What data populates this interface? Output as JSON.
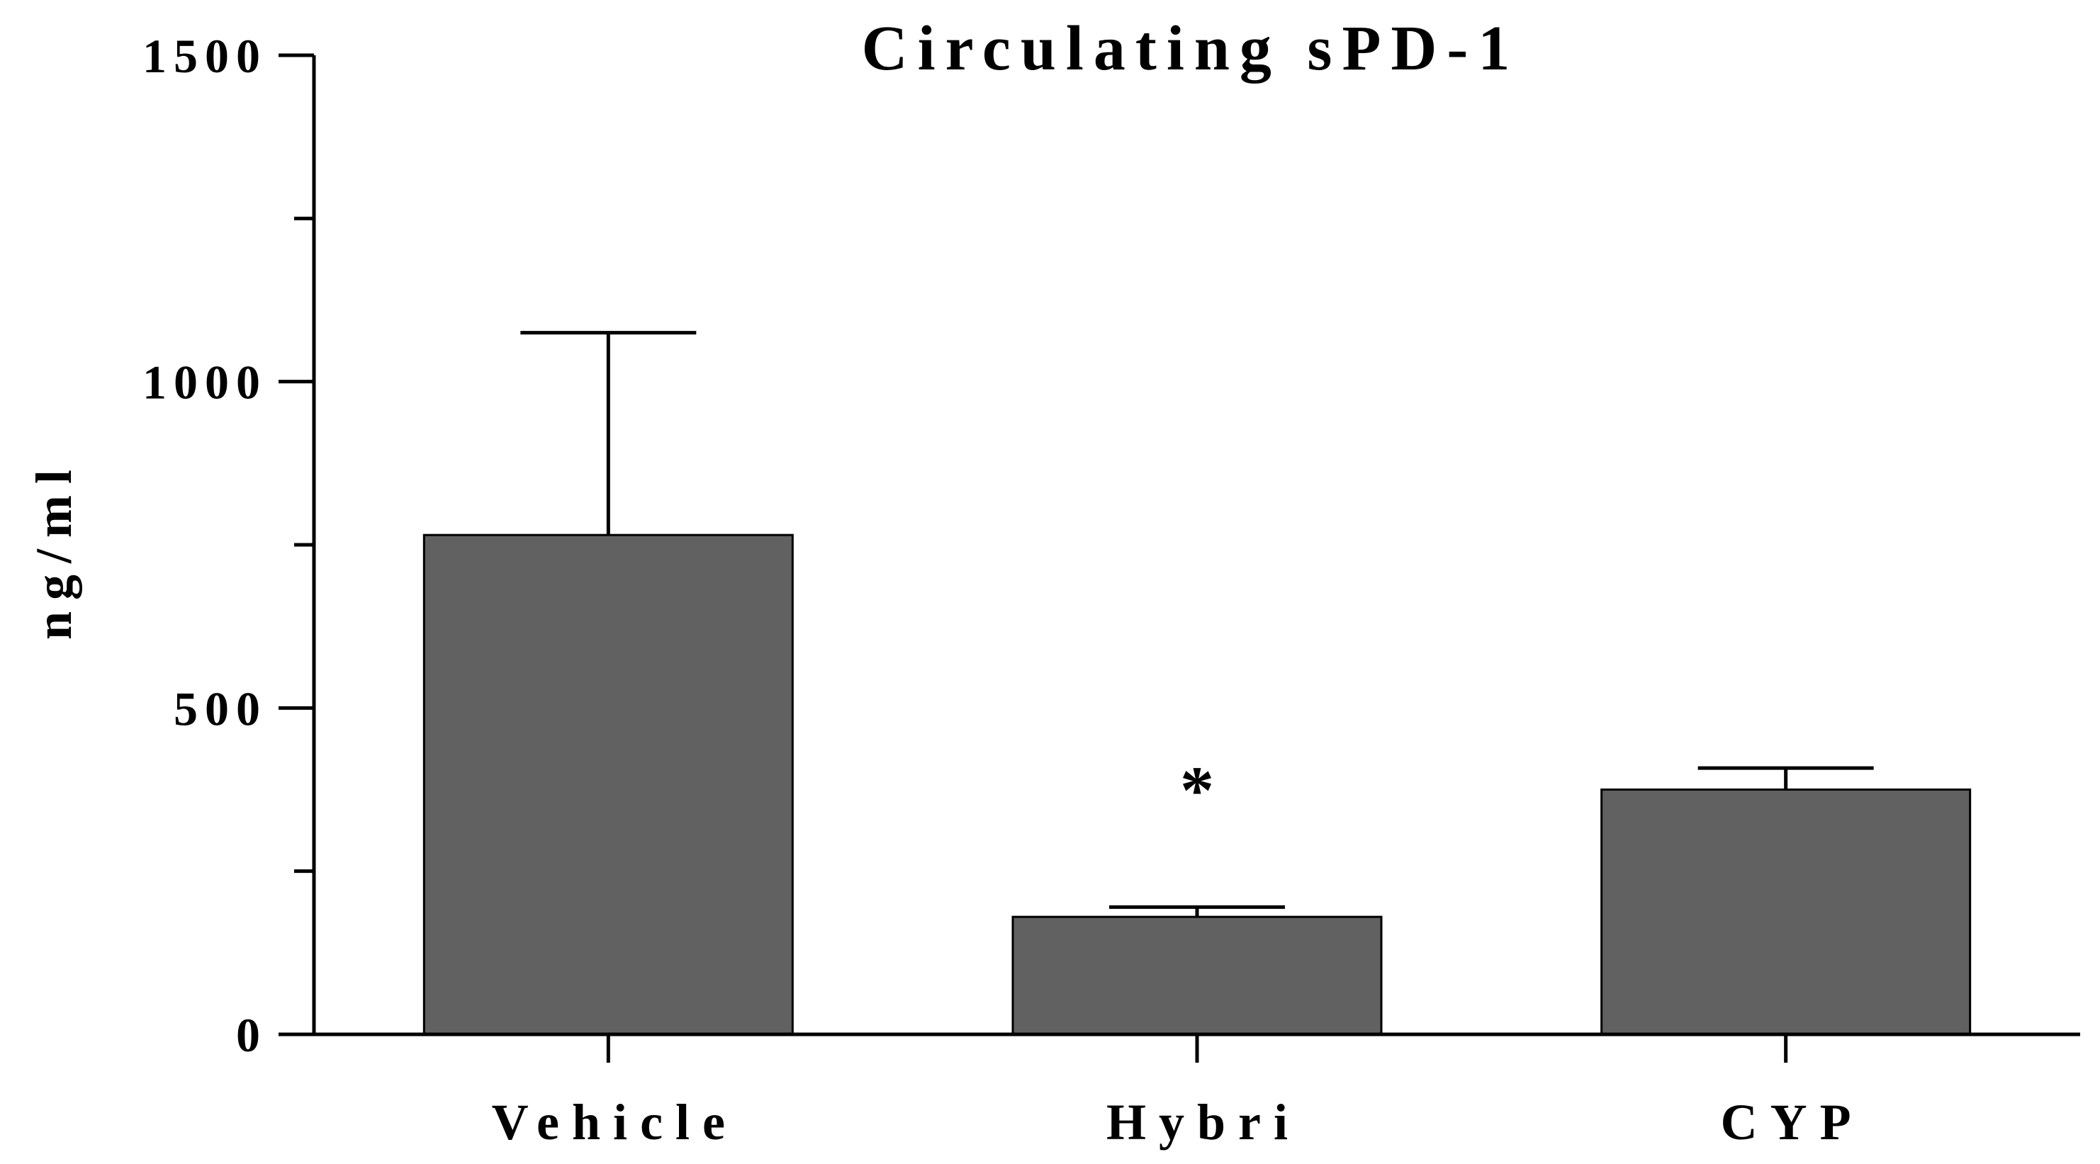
{
  "chart_data": {
    "type": "bar",
    "title": "Circulating sPD-1",
    "xlabel": "",
    "ylabel": "ng/ml",
    "ylim": [
      0,
      1500
    ],
    "yticks": [
      0,
      500,
      1000,
      1500
    ],
    "yticks_minor": [
      250,
      750,
      1250
    ],
    "ytick_labels": [
      "0",
      "500",
      "1000",
      "1500"
    ],
    "categories": [
      "Vehicle",
      "Hybri",
      "CYP"
    ],
    "values": [
      765,
      180,
      375
    ],
    "error_upper": [
      1075,
      195,
      408
    ],
    "annotations": [
      {
        "category": "Hybri",
        "text": "*"
      }
    ],
    "bar_color": "#616161",
    "grid": false,
    "legend": "none"
  }
}
